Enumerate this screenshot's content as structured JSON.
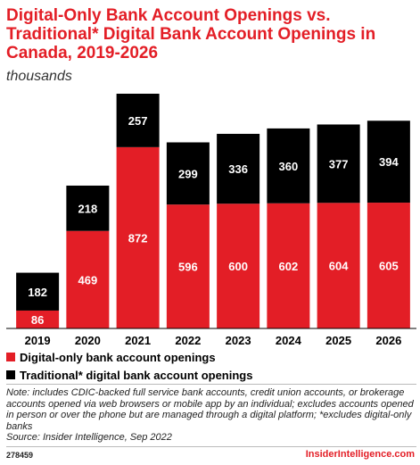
{
  "header": {
    "title": "Digital-Only Bank Account Openings vs. Traditional* Digital Bank Account Openings in Canada, 2019-2026",
    "subtitle": "thousands"
  },
  "colors": {
    "digital_only": "#e31e26",
    "traditional": "#000000",
    "brand": "#e31e26"
  },
  "chart_data": {
    "type": "bar",
    "stacked": true,
    "categories": [
      "2019",
      "2020",
      "2021",
      "2022",
      "2023",
      "2024",
      "2025",
      "2026"
    ],
    "series": [
      {
        "name": "Digital-only bank account openings",
        "values": [
          86,
          469,
          872,
          596,
          600,
          602,
          604,
          605
        ]
      },
      {
        "name": "Traditional* digital bank account openings",
        "values": [
          182,
          218,
          257,
          299,
          336,
          360,
          377,
          394
        ]
      }
    ],
    "title": "Digital-Only Bank Account Openings vs. Traditional* Digital Bank Account Openings in Canada, 2019-2026",
    "ylabel": "thousands",
    "ylim": [
      0,
      1129
    ],
    "grid": false,
    "legend": "bottom-left"
  },
  "legend": {
    "items": [
      {
        "label": "Digital-only bank account openings"
      },
      {
        "label": "Traditional* digital bank account openings"
      }
    ]
  },
  "notes": {
    "note": "Note: includes CDIC-backed full service bank accounts, credit union accounts, or brokerage accounts opened via web browsers or mobile app by an individual; excludes accounts opened in person or over the phone but are managed through a digital platform; *excludes digital-only banks",
    "source": "Source: Insider Intelligence, Sep 2022"
  },
  "footer": {
    "id": "278459",
    "brand": "InsiderIntelligence.com"
  }
}
